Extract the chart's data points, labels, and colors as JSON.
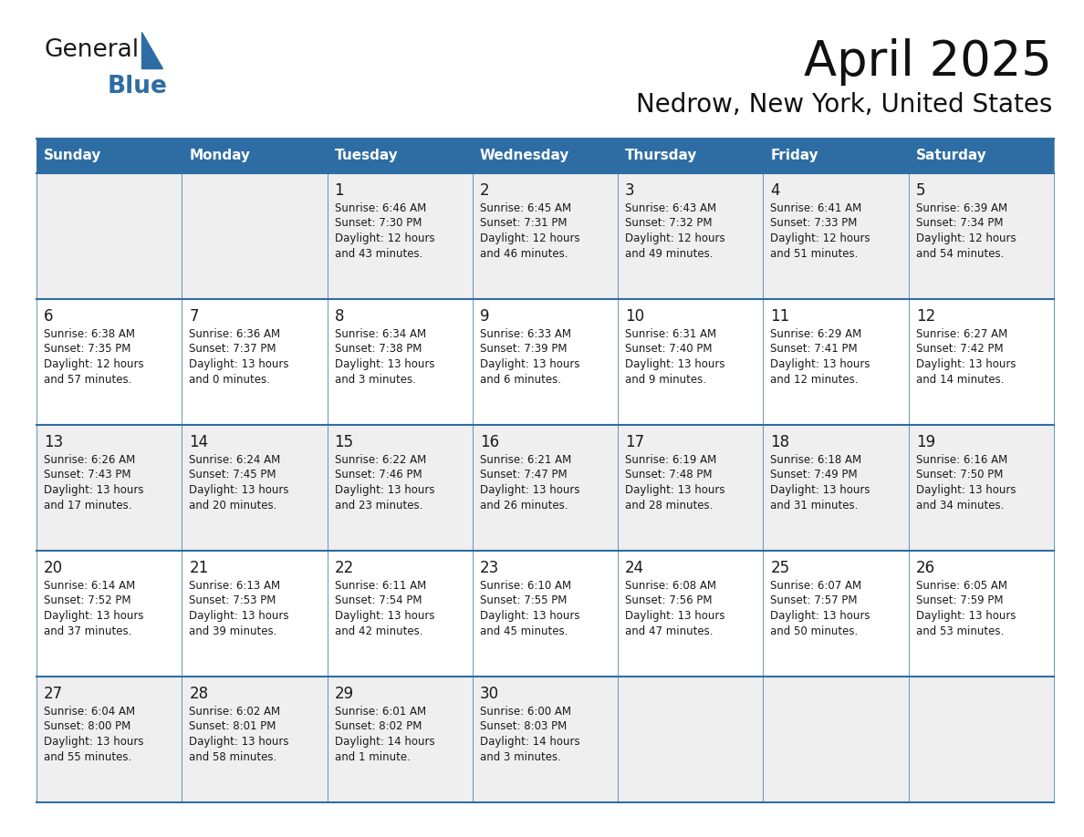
{
  "title": "April 2025",
  "subtitle": "Nedrow, New York, United States",
  "header_bg": "#2E6DA4",
  "header_text_color": "#FFFFFF",
  "day_names": [
    "Sunday",
    "Monday",
    "Tuesday",
    "Wednesday",
    "Thursday",
    "Friday",
    "Saturday"
  ],
  "row_bg_odd": "#EFEFEF",
  "row_bg_even": "#FFFFFF",
  "cell_text_color": "#1a1a1a",
  "grid_line_color": "#2E6DA4",
  "days": [
    {
      "day": 1,
      "col": 2,
      "row": 0,
      "sunrise": "6:46 AM",
      "sunset": "7:30 PM",
      "daylight_l1": "12 hours",
      "daylight_l2": "and 43 minutes."
    },
    {
      "day": 2,
      "col": 3,
      "row": 0,
      "sunrise": "6:45 AM",
      "sunset": "7:31 PM",
      "daylight_l1": "12 hours",
      "daylight_l2": "and 46 minutes."
    },
    {
      "day": 3,
      "col": 4,
      "row": 0,
      "sunrise": "6:43 AM",
      "sunset": "7:32 PM",
      "daylight_l1": "12 hours",
      "daylight_l2": "and 49 minutes."
    },
    {
      "day": 4,
      "col": 5,
      "row": 0,
      "sunrise": "6:41 AM",
      "sunset": "7:33 PM",
      "daylight_l1": "12 hours",
      "daylight_l2": "and 51 minutes."
    },
    {
      "day": 5,
      "col": 6,
      "row": 0,
      "sunrise": "6:39 AM",
      "sunset": "7:34 PM",
      "daylight_l1": "12 hours",
      "daylight_l2": "and 54 minutes."
    },
    {
      "day": 6,
      "col": 0,
      "row": 1,
      "sunrise": "6:38 AM",
      "sunset": "7:35 PM",
      "daylight_l1": "12 hours",
      "daylight_l2": "and 57 minutes."
    },
    {
      "day": 7,
      "col": 1,
      "row": 1,
      "sunrise": "6:36 AM",
      "sunset": "7:37 PM",
      "daylight_l1": "13 hours",
      "daylight_l2": "and 0 minutes."
    },
    {
      "day": 8,
      "col": 2,
      "row": 1,
      "sunrise": "6:34 AM",
      "sunset": "7:38 PM",
      "daylight_l1": "13 hours",
      "daylight_l2": "and 3 minutes."
    },
    {
      "day": 9,
      "col": 3,
      "row": 1,
      "sunrise": "6:33 AM",
      "sunset": "7:39 PM",
      "daylight_l1": "13 hours",
      "daylight_l2": "and 6 minutes."
    },
    {
      "day": 10,
      "col": 4,
      "row": 1,
      "sunrise": "6:31 AM",
      "sunset": "7:40 PM",
      "daylight_l1": "13 hours",
      "daylight_l2": "and 9 minutes."
    },
    {
      "day": 11,
      "col": 5,
      "row": 1,
      "sunrise": "6:29 AM",
      "sunset": "7:41 PM",
      "daylight_l1": "13 hours",
      "daylight_l2": "and 12 minutes."
    },
    {
      "day": 12,
      "col": 6,
      "row": 1,
      "sunrise": "6:27 AM",
      "sunset": "7:42 PM",
      "daylight_l1": "13 hours",
      "daylight_l2": "and 14 minutes."
    },
    {
      "day": 13,
      "col": 0,
      "row": 2,
      "sunrise": "6:26 AM",
      "sunset": "7:43 PM",
      "daylight_l1": "13 hours",
      "daylight_l2": "and 17 minutes."
    },
    {
      "day": 14,
      "col": 1,
      "row": 2,
      "sunrise": "6:24 AM",
      "sunset": "7:45 PM",
      "daylight_l1": "13 hours",
      "daylight_l2": "and 20 minutes."
    },
    {
      "day": 15,
      "col": 2,
      "row": 2,
      "sunrise": "6:22 AM",
      "sunset": "7:46 PM",
      "daylight_l1": "13 hours",
      "daylight_l2": "and 23 minutes."
    },
    {
      "day": 16,
      "col": 3,
      "row": 2,
      "sunrise": "6:21 AM",
      "sunset": "7:47 PM",
      "daylight_l1": "13 hours",
      "daylight_l2": "and 26 minutes."
    },
    {
      "day": 17,
      "col": 4,
      "row": 2,
      "sunrise": "6:19 AM",
      "sunset": "7:48 PM",
      "daylight_l1": "13 hours",
      "daylight_l2": "and 28 minutes."
    },
    {
      "day": 18,
      "col": 5,
      "row": 2,
      "sunrise": "6:18 AM",
      "sunset": "7:49 PM",
      "daylight_l1": "13 hours",
      "daylight_l2": "and 31 minutes."
    },
    {
      "day": 19,
      "col": 6,
      "row": 2,
      "sunrise": "6:16 AM",
      "sunset": "7:50 PM",
      "daylight_l1": "13 hours",
      "daylight_l2": "and 34 minutes."
    },
    {
      "day": 20,
      "col": 0,
      "row": 3,
      "sunrise": "6:14 AM",
      "sunset": "7:52 PM",
      "daylight_l1": "13 hours",
      "daylight_l2": "and 37 minutes."
    },
    {
      "day": 21,
      "col": 1,
      "row": 3,
      "sunrise": "6:13 AM",
      "sunset": "7:53 PM",
      "daylight_l1": "13 hours",
      "daylight_l2": "and 39 minutes."
    },
    {
      "day": 22,
      "col": 2,
      "row": 3,
      "sunrise": "6:11 AM",
      "sunset": "7:54 PM",
      "daylight_l1": "13 hours",
      "daylight_l2": "and 42 minutes."
    },
    {
      "day": 23,
      "col": 3,
      "row": 3,
      "sunrise": "6:10 AM",
      "sunset": "7:55 PM",
      "daylight_l1": "13 hours",
      "daylight_l2": "and 45 minutes."
    },
    {
      "day": 24,
      "col": 4,
      "row": 3,
      "sunrise": "6:08 AM",
      "sunset": "7:56 PM",
      "daylight_l1": "13 hours",
      "daylight_l2": "and 47 minutes."
    },
    {
      "day": 25,
      "col": 5,
      "row": 3,
      "sunrise": "6:07 AM",
      "sunset": "7:57 PM",
      "daylight_l1": "13 hours",
      "daylight_l2": "and 50 minutes."
    },
    {
      "day": 26,
      "col": 6,
      "row": 3,
      "sunrise": "6:05 AM",
      "sunset": "7:59 PM",
      "daylight_l1": "13 hours",
      "daylight_l2": "and 53 minutes."
    },
    {
      "day": 27,
      "col": 0,
      "row": 4,
      "sunrise": "6:04 AM",
      "sunset": "8:00 PM",
      "daylight_l1": "13 hours",
      "daylight_l2": "and 55 minutes."
    },
    {
      "day": 28,
      "col": 1,
      "row": 4,
      "sunrise": "6:02 AM",
      "sunset": "8:01 PM",
      "daylight_l1": "13 hours",
      "daylight_l2": "and 58 minutes."
    },
    {
      "day": 29,
      "col": 2,
      "row": 4,
      "sunrise": "6:01 AM",
      "sunset": "8:02 PM",
      "daylight_l1": "14 hours",
      "daylight_l2": "and 1 minute."
    },
    {
      "day": 30,
      "col": 3,
      "row": 4,
      "sunrise": "6:00 AM",
      "sunset": "8:03 PM",
      "daylight_l1": "14 hours",
      "daylight_l2": "and 3 minutes."
    }
  ],
  "logo_color_general": "#1a1a1a",
  "logo_color_blue": "#2E6DA4",
  "logo_triangle_color": "#2E6DA4",
  "fig_width": 11.88,
  "fig_height": 9.18,
  "dpi": 100
}
